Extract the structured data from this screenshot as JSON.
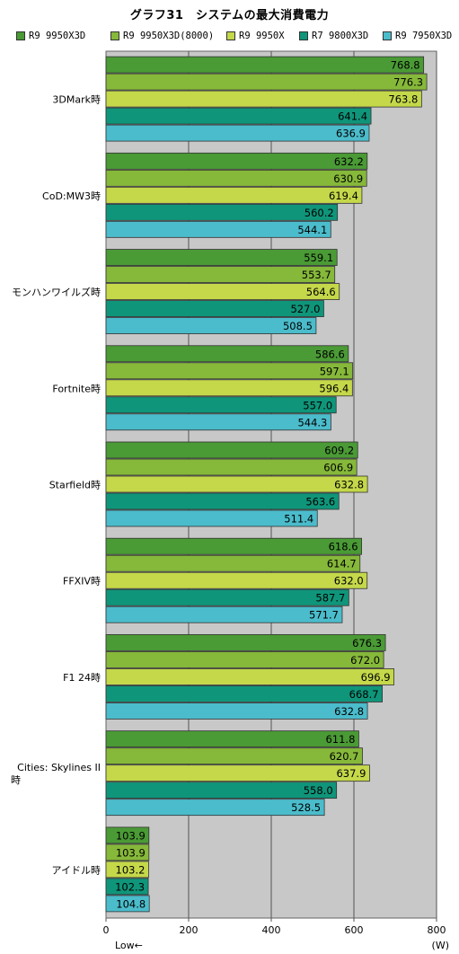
{
  "chart_data": {
    "type": "bar",
    "orientation": "horizontal",
    "title": "グラフ31　システムの最大消費電力",
    "unit_label": "(W)",
    "low_label": "Low←",
    "xlim": [
      0,
      800
    ],
    "ticks": [
      "0",
      "200",
      "400",
      "600",
      "800"
    ],
    "tick_values": [
      0,
      200,
      400,
      600,
      800
    ],
    "grid": true,
    "legend_position": "top",
    "categories": [
      "3DMark時",
      "CoD:MW3時",
      "モンハンワイルズ時",
      "Fortnite時",
      "Starfield時",
      "FFXIV時",
      "F1 24時",
      "Cities: Skylines II 時",
      "アイドル時"
    ],
    "category_lines": [
      [
        "3DMark時"
      ],
      [
        "CoD:MW3時"
      ],
      [
        "モンハンワイルズ時"
      ],
      [
        "Fortnite時"
      ],
      [
        "Starfield時"
      ],
      [
        "FFXIV時"
      ],
      [
        "F1 24時"
      ],
      [
        "Cities: Skylines II",
        "時"
      ],
      [
        "アイドル時"
      ]
    ],
    "series": [
      {
        "name": "R9 9950X3D",
        "color": "#4a9a35",
        "values": [
          768.8,
          632.2,
          559.1,
          586.6,
          609.2,
          618.6,
          676.3,
          611.8,
          103.9
        ],
        "labels": [
          "768.8",
          "632.2",
          "559.1",
          "586.6",
          "609.2",
          "618.6",
          "676.3",
          "611.8",
          "103.9"
        ]
      },
      {
        "name": "R9 9950X3D(8000)",
        "color": "#86b83a",
        "values": [
          776.3,
          630.9,
          553.7,
          597.1,
          606.9,
          614.7,
          672.0,
          620.7,
          103.9
        ],
        "labels": [
          "776.3",
          "630.9",
          "553.7",
          "597.1",
          "606.9",
          "614.7",
          "672.0",
          "620.7",
          "103.9"
        ]
      },
      {
        "name": "R9 9950X",
        "color": "#c4d84a",
        "values": [
          763.8,
          619.4,
          564.6,
          596.4,
          632.8,
          632.0,
          696.9,
          637.9,
          103.2
        ],
        "labels": [
          "763.8",
          "619.4",
          "564.6",
          "596.4",
          "632.8",
          "632.0",
          "696.9",
          "637.9",
          "103.2"
        ]
      },
      {
        "name": "R7 9800X3D",
        "color": "#0f957a",
        "values": [
          641.4,
          560.2,
          527.0,
          557.0,
          563.6,
          587.7,
          668.7,
          558.0,
          102.3
        ],
        "labels": [
          "641.4",
          "560.2",
          "527.0",
          "557.0",
          "563.6",
          "587.7",
          "668.7",
          "558.0",
          "102.3"
        ]
      },
      {
        "name": "R9 7950X3D",
        "color": "#4bbccb",
        "values": [
          636.9,
          544.1,
          508.5,
          544.3,
          511.4,
          571.7,
          632.8,
          528.5,
          104.8
        ],
        "labels": [
          "636.9",
          "544.1",
          "508.5",
          "544.3",
          "511.4",
          "571.7",
          "632.8",
          "528.5",
          "104.8"
        ]
      }
    ]
  }
}
